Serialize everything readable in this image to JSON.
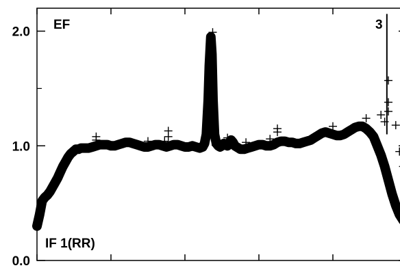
{
  "chart_data": {
    "type": "scatter",
    "title": "",
    "xlabel": "",
    "ylabel": "",
    "ylim": [
      0.0,
      2.2
    ],
    "xlim": [
      0,
      100
    ],
    "y_ticks_major": [
      {
        "value": 0.0,
        "label": "0.0"
      },
      {
        "value": 1.0,
        "label": "1.0"
      },
      {
        "value": 2.0,
        "label": "2.0"
      }
    ],
    "y_ticks_minor": [
      0.5,
      1.5
    ],
    "x_ticks": [
      0,
      20,
      40,
      60,
      80,
      100
    ],
    "grid": false,
    "legend": "none",
    "marker": "plus",
    "color": "#000000",
    "annotations": [
      {
        "text": "EF",
        "position": "top-left"
      },
      {
        "text": "3",
        "position": "top-right"
      },
      {
        "text": "IF 1(RR)",
        "position": "bottom-left"
      }
    ],
    "series": [
      {
        "x": [
          0,
          0.7,
          1.4,
          2.1,
          2.8,
          3.5,
          4.2,
          4.9,
          5.6,
          6.3,
          7,
          7.7,
          8.4,
          9.1,
          9.8,
          10.5,
          11.2,
          11.9,
          12.6,
          13.3,
          14,
          15,
          16,
          17,
          18,
          19,
          20,
          21,
          22,
          23,
          24,
          25,
          26,
          27,
          28,
          29,
          30,
          31,
          32,
          33,
          34,
          35,
          36,
          37,
          38,
          39,
          40,
          41,
          42,
          43,
          44,
          44.8,
          45.3,
          45.8,
          46.3,
          46.6,
          47.0,
          47.3,
          47.6,
          48.0,
          48.5,
          49,
          49.5,
          50,
          50.5,
          51,
          51.5,
          52,
          52.5,
          53,
          53.5,
          54,
          54.5,
          55,
          55.5,
          56,
          57,
          58,
          59,
          60,
          61,
          62,
          63,
          64,
          65,
          66,
          67,
          68,
          69,
          70,
          71,
          72,
          73,
          74,
          75,
          76,
          77,
          78,
          79,
          80,
          81,
          82,
          83,
          84,
          85,
          86,
          87,
          88,
          89,
          90,
          91,
          92,
          93,
          94,
          95,
          96,
          97,
          98,
          99,
          100
        ],
        "y": [
          0.3,
          0.4,
          0.52,
          0.55,
          0.57,
          0.6,
          0.64,
          0.68,
          0.72,
          0.77,
          0.82,
          0.86,
          0.9,
          0.93,
          0.95,
          0.97,
          0.97,
          0.98,
          0.98,
          0.98,
          0.98,
          0.99,
          1.0,
          1.01,
          1.01,
          1.01,
          1.0,
          1.0,
          1.01,
          1.02,
          1.03,
          1.03,
          1.02,
          1.01,
          1.0,
          0.99,
          0.99,
          1.0,
          1.01,
          1.01,
          1.0,
          0.99,
          1.0,
          1.01,
          1.01,
          1.0,
          0.99,
          0.99,
          1.0,
          0.99,
          0.98,
          0.99,
          1.02,
          1.1,
          1.4,
          1.7,
          1.95,
          1.8,
          1.4,
          1.1,
          1.02,
          1.0,
          0.99,
          1.0,
          1.02,
          1.01,
          1.0,
          1.03,
          1.05,
          1.03,
          1.0,
          0.99,
          0.98,
          0.97,
          0.97,
          0.97,
          0.98,
          0.99,
          1.0,
          1.01,
          1.01,
          1.0,
          1.0,
          1.01,
          1.03,
          1.04,
          1.04,
          1.03,
          1.03,
          1.02,
          1.02,
          1.03,
          1.04,
          1.05,
          1.07,
          1.09,
          1.11,
          1.12,
          1.11,
          1.1,
          1.09,
          1.09,
          1.1,
          1.12,
          1.14,
          1.16,
          1.17,
          1.17,
          1.15,
          1.12,
          1.08,
          1.0,
          0.92,
          0.82,
          0.7,
          0.58,
          0.48,
          0.4,
          0.35,
          0.31
        ]
      }
    ],
    "outliers": [
      {
        "x": 16,
        "y": 1.08
      },
      {
        "x": 16,
        "y": 1.05
      },
      {
        "x": 30,
        "y": 1.04
      },
      {
        "x": 34.5,
        "y": 1.04
      },
      {
        "x": 35.5,
        "y": 1.08
      },
      {
        "x": 35.5,
        "y": 1.13
      },
      {
        "x": 47.5,
        "y": 1.99
      },
      {
        "x": 51.5,
        "y": 1.07
      },
      {
        "x": 56.5,
        "y": 1.03
      },
      {
        "x": 63,
        "y": 1.06
      },
      {
        "x": 65,
        "y": 1.12
      },
      {
        "x": 65,
        "y": 1.15
      },
      {
        "x": 80,
        "y": 1.17
      },
      {
        "x": 89,
        "y": 1.24
      },
      {
        "x": 93,
        "y": 1.27
      },
      {
        "x": 94,
        "y": 1.21
      },
      {
        "x": 95,
        "y": 1.3
      },
      {
        "x": 95,
        "y": 1.38
      },
      {
        "x": 95,
        "y": 1.57
      },
      {
        "x": 97,
        "y": 1.18
      },
      {
        "x": 98,
        "y": 0.95
      },
      {
        "x": 99,
        "y": 0.82
      },
      {
        "x": 99.5,
        "y": 0.72
      }
    ],
    "spikes": [
      {
        "x": 47.4,
        "y_from": 1.0,
        "y_to": 1.98
      },
      {
        "x": 94.6,
        "y_from": 1.1,
        "y_to": 2.15
      }
    ]
  }
}
